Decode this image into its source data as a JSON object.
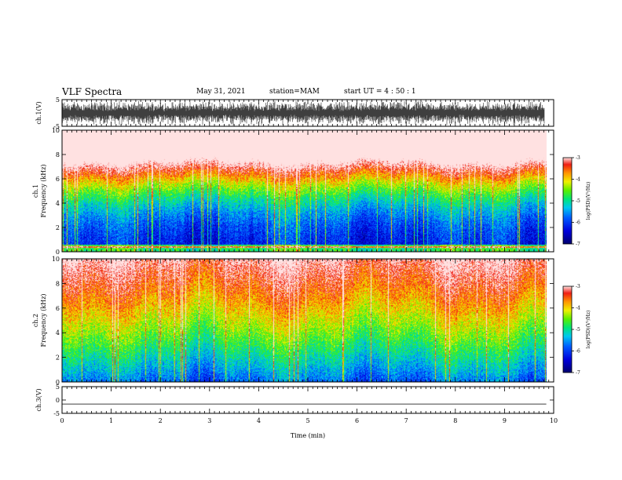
{
  "header": {
    "title": "VLF Spectra",
    "date": "May 31, 2021",
    "station": "station=MAM",
    "start": "start  UT  =   4 : 50 : 1"
  },
  "chart_data": [
    {
      "type": "line",
      "panel": "ch1-waveform",
      "ylabel": "ch.1(V)",
      "ylim": [
        -5,
        5
      ],
      "yticks": [
        "5",
        "-5"
      ],
      "xlim": [
        0,
        10
      ],
      "note": "dense noisy waveform"
    },
    {
      "type": "heatmap",
      "panel": "ch1-spectrogram",
      "ylabel_line1": "ch.1",
      "ylabel_line2": "Frequency (kHz)",
      "ylim": [
        0,
        10
      ],
      "yticks": [
        "0",
        "2",
        "4",
        "6",
        "8",
        "10"
      ],
      "xlim": [
        0,
        9.85
      ],
      "colorbar": {
        "label": "log(PSD)(V²/Hz)",
        "ticks": [
          "-3",
          "-4",
          "-5",
          "-6",
          "-7"
        ],
        "range": [
          -7,
          -3
        ]
      }
    },
    {
      "type": "heatmap",
      "panel": "ch2-spectrogram",
      "ylabel_line1": "ch.2",
      "ylabel_line2": "Frequency (kHz)",
      "ylim": [
        0,
        10
      ],
      "yticks": [
        "0",
        "2",
        "4",
        "6",
        "8",
        "10"
      ],
      "xlim": [
        0,
        9.85
      ],
      "colorbar": {
        "label": "log(PSD)(V²/Hz)",
        "ticks": [
          "-3",
          "-4",
          "-5",
          "-6",
          "-7"
        ],
        "range": [
          -7,
          -3
        ]
      }
    },
    {
      "type": "line",
      "panel": "ch3-waveform",
      "ylabel": "ch.3(V)",
      "ylim": [
        -5,
        5
      ],
      "yticks": [
        "5",
        "0",
        "-5"
      ],
      "x": [
        0,
        9.85
      ],
      "y": [
        -1.5,
        -1.5
      ],
      "xlabel": "Time (min)",
      "xlim": [
        0,
        10
      ],
      "xticks": [
        "0",
        "1",
        "2",
        "3",
        "4",
        "5",
        "6",
        "7",
        "8",
        "9",
        "10"
      ]
    }
  ]
}
